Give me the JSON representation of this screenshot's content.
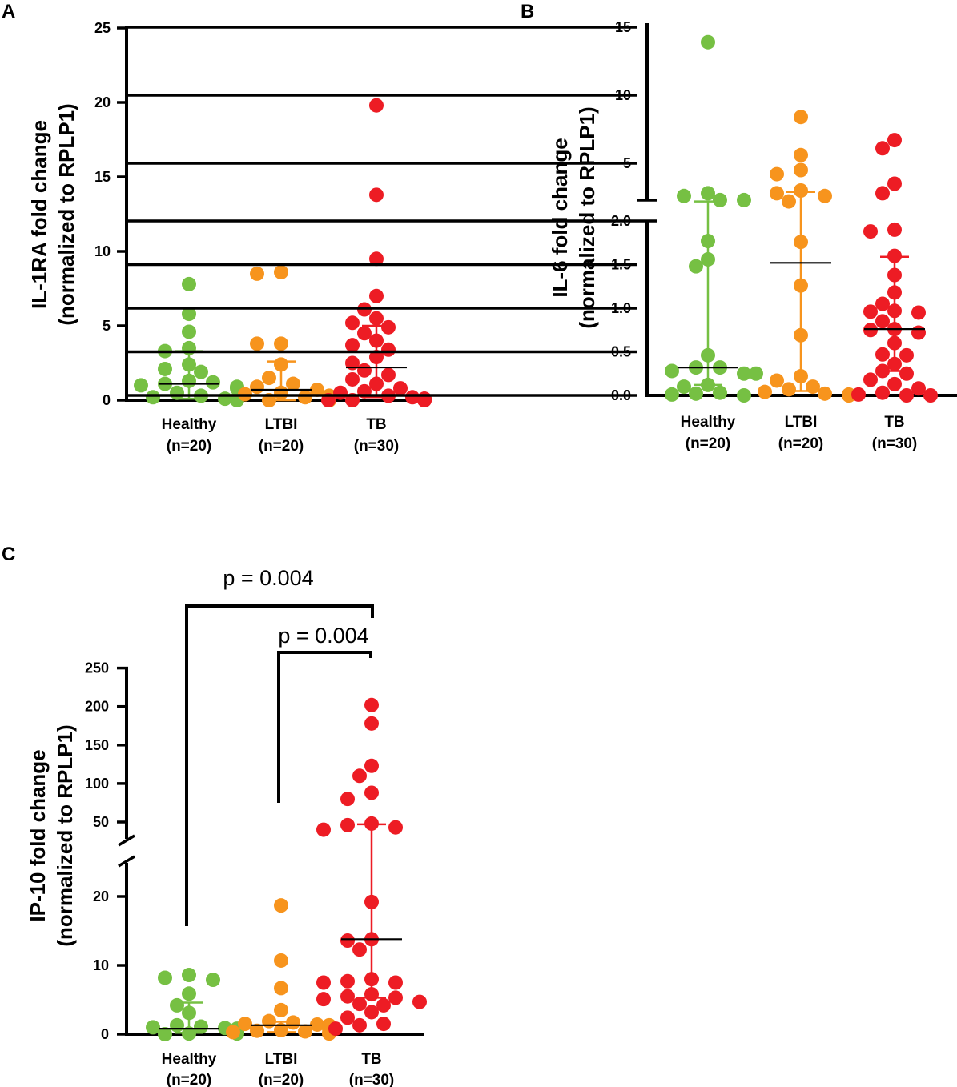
{
  "colors": {
    "Healthy": "#76c043",
    "LTBI": "#f7941d",
    "TB": "#ed1c24"
  },
  "chart_data": [
    {
      "type": "scatter",
      "panel_label": "A",
      "ylabel_line1": "IL-1RA fold change",
      "ylabel_line2": "(normalized to RPLP1)",
      "yticks": [
        "0",
        "5",
        "10",
        "15",
        "20",
        "25"
      ],
      "ylim": [
        0,
        25
      ],
      "categories": [
        {
          "name": "Healthy",
          "n_label": "(n=20)"
        },
        {
          "name": "LTBI",
          "n_label": "(n=20)"
        },
        {
          "name": "TB",
          "n_label": "(n=30)"
        }
      ],
      "series": [
        {
          "name": "Healthy",
          "median": 1.1,
          "q1": 0.1,
          "q3": 3.3,
          "values": [
            7.8,
            5.8,
            4.6,
            3.5,
            3.3,
            2.4,
            2.1,
            1.9,
            1.3,
            1.2,
            1.1,
            1.0,
            0.9,
            0.8,
            0.5,
            0.3,
            0.2,
            0.1,
            0.1,
            0.0
          ]
        },
        {
          "name": "LTBI",
          "median": 0.7,
          "q1": 0.0,
          "q3": 2.6,
          "values": [
            8.6,
            8.5,
            3.8,
            3.8,
            2.4,
            1.5,
            1.1,
            0.9,
            0.7,
            0.5,
            0.4,
            0.3,
            0.2,
            0.2,
            0.1,
            0.1,
            0.1,
            0.0,
            0.0,
            0.0
          ]
        },
        {
          "name": "TB",
          "median": 2.2,
          "q1": 0.2,
          "q3": 5.0,
          "values": [
            19.8,
            13.8,
            9.5,
            7.0,
            6.1,
            5.5,
            5.2,
            4.9,
            4.5,
            4.0,
            3.7,
            3.4,
            2.9,
            2.5,
            2.0,
            1.7,
            1.4,
            1.1,
            0.8,
            0.6,
            0.5,
            0.3,
            0.2,
            0.1,
            0.1,
            0.0,
            0.0,
            0.0,
            0.0,
            0.0
          ]
        }
      ]
    },
    {
      "type": "scatter",
      "panel_label": "B",
      "ylabel_line1": "IL-6 fold change",
      "ylabel_line2": "(normalized to RPLP1)",
      "yticks_low": [
        "0.0",
        "0.5",
        "1.0",
        "1.5",
        "2.0"
      ],
      "yticks_high": [
        "5",
        "10",
        "15"
      ],
      "ylim": [
        0,
        15
      ],
      "axis_break": 2.0,
      "categories": [
        {
          "name": "Healthy",
          "n_label": "(n=20)"
        },
        {
          "name": "LTBI",
          "n_label": "(n=20)"
        },
        {
          "name": "TB",
          "n_label": "(n=30)"
        }
      ],
      "series": [
        {
          "name": "Healthy",
          "median": 0.32,
          "q1": 0.12,
          "q3": 2.2,
          "values": [
            13.9,
            2.8,
            2.6,
            2.3,
            2.3,
            1.77,
            1.56,
            1.48,
            0.46,
            0.32,
            0.32,
            0.28,
            0.25,
            0.25,
            0.12,
            0.1,
            0.03,
            0.02,
            0.01,
            0.0
          ]
        },
        {
          "name": "LTBI",
          "median": 1.52,
          "q1": 0.05,
          "q3": 2.9,
          "values": [
            8.4,
            5.6,
            4.5,
            4.2,
            3.0,
            2.8,
            2.6,
            2.2,
            1.76,
            1.26,
            0.69,
            0.22,
            0.17,
            0.1,
            0.07,
            0.04,
            0.02,
            0.01,
            0.0,
            0.0
          ]
        },
        {
          "name": "TB",
          "median": 0.76,
          "q1": 0.28,
          "q3": 1.59,
          "values": [
            6.7,
            6.1,
            3.5,
            2.8,
            1.9,
            1.88,
            1.6,
            1.38,
            1.18,
            1.05,
            0.97,
            0.96,
            0.95,
            0.85,
            0.76,
            0.75,
            0.72,
            0.6,
            0.47,
            0.46,
            0.36,
            0.28,
            0.25,
            0.18,
            0.13,
            0.08,
            0.03,
            0.01,
            0.0,
            0.0
          ]
        }
      ]
    },
    {
      "type": "scatter",
      "panel_label": "C",
      "ylabel_line1": "IP-10 fold change",
      "ylabel_line2": "(normalized to RPLP1)",
      "yticks_low": [
        "0",
        "10",
        "20"
      ],
      "yticks_high": [
        "50",
        "100",
        "150",
        "200",
        "250"
      ],
      "ylim": [
        0,
        250
      ],
      "categories": [
        {
          "name": "Healthy",
          "n_label": "(n=20)"
        },
        {
          "name": "LTBI",
          "n_label": "(n=20)"
        },
        {
          "name": "TB",
          "n_label": "(n=30)"
        }
      ],
      "series": [
        {
          "name": "Healthy",
          "median": 0.8,
          "q1": 0.2,
          "q3": 4.6,
          "values": [
            8.6,
            8.2,
            7.9,
            5.9,
            4.2,
            3.1,
            1.3,
            1.1,
            1.0,
            0.9,
            0.8,
            0.7,
            0.6,
            0.5,
            0.4,
            0.3,
            0.2,
            0.1,
            0.1,
            0.0
          ]
        },
        {
          "name": "LTBI",
          "median": 1.3,
          "q1": 0.3,
          "q3": 1.8,
          "values": [
            18.7,
            10.7,
            6.7,
            3.5,
            1.9,
            1.7,
            1.5,
            1.4,
            1.3,
            1.2,
            1.1,
            1.0,
            0.9,
            0.8,
            0.6,
            0.5,
            0.4,
            0.3,
            0.2,
            0.1
          ]
        },
        {
          "name": "TB",
          "median": 13.8,
          "q1": 5.3,
          "q3": 47.0,
          "values": [
            202,
            178,
            123,
            110,
            88,
            80,
            48,
            46,
            43,
            40,
            19.2,
            13.8,
            13.6,
            12.3,
            8.0,
            7.7,
            7.5,
            7.5,
            5.8,
            5.5,
            5.3,
            5.1,
            4.7,
            4.4,
            4.2,
            3.2,
            2.4,
            1.5,
            1.3,
            0.8
          ]
        }
      ],
      "comparisons": [
        {
          "groups": [
            "Healthy",
            "TB"
          ],
          "label": "p = 0.004"
        },
        {
          "groups": [
            "LTBI",
            "TB"
          ],
          "label": "p = 0.004"
        }
      ]
    }
  ]
}
